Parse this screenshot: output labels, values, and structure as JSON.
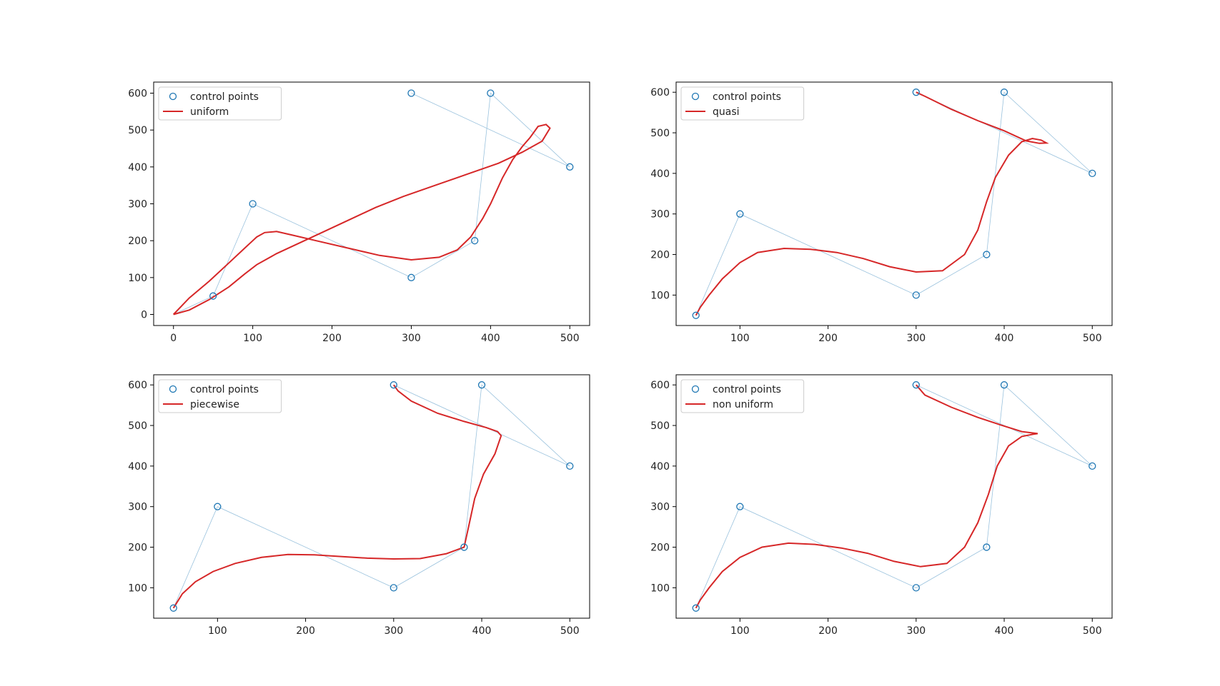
{
  "chart_data": [
    {
      "type": "line",
      "legend_placement": "upper-left",
      "xlim": [
        -25,
        525
      ],
      "ylim": [
        -30,
        630
      ],
      "xticks": [
        0,
        100,
        200,
        300,
        400,
        500
      ],
      "yticks": [
        0,
        100,
        200,
        300,
        400,
        500,
        600
      ],
      "control_points": {
        "name": "control points",
        "x": [
          0,
          50,
          100,
          300,
          380,
          400,
          500,
          300
        ],
        "y": [
          0,
          50,
          300,
          100,
          200,
          600,
          400,
          600
        ]
      },
      "markers": [
        [
          50,
          50
        ],
        [
          100,
          300
        ],
        [
          300,
          100
        ],
        [
          380,
          200
        ],
        [
          400,
          600
        ],
        [
          500,
          400
        ],
        [
          300,
          600
        ]
      ],
      "curve": {
        "name": "uniform",
        "points": [
          [
            0,
            0
          ],
          [
            20,
            12
          ],
          [
            45,
            40
          ],
          [
            70,
            75
          ],
          [
            90,
            110
          ],
          [
            105,
            135
          ],
          [
            130,
            165
          ],
          [
            160,
            195
          ],
          [
            190,
            225
          ],
          [
            220,
            255
          ],
          [
            255,
            290
          ],
          [
            290,
            320
          ],
          [
            330,
            350
          ],
          [
            370,
            380
          ],
          [
            410,
            410
          ],
          [
            440,
            440
          ],
          [
            465,
            470
          ],
          [
            475,
            505
          ],
          [
            470,
            515
          ],
          [
            460,
            510
          ],
          [
            450,
            480
          ],
          [
            440,
            455
          ],
          [
            428,
            420
          ],
          [
            415,
            370
          ],
          [
            400,
            300
          ],
          [
            390,
            260
          ],
          [
            375,
            210
          ],
          [
            358,
            175
          ],
          [
            335,
            155
          ],
          [
            300,
            148
          ],
          [
            260,
            160
          ],
          [
            220,
            180
          ],
          [
            180,
            200
          ],
          [
            150,
            215
          ],
          [
            130,
            225
          ],
          [
            115,
            222
          ],
          [
            105,
            210
          ],
          [
            100,
            200
          ],
          [
            90,
            180
          ],
          [
            70,
            140
          ],
          [
            45,
            90
          ],
          [
            20,
            45
          ],
          [
            0,
            0
          ]
        ]
      }
    },
    {
      "type": "line",
      "legend_placement": "upper-left",
      "xlim": [
        27.5,
        522.5
      ],
      "ylim": [
        25,
        625
      ],
      "xticks": [
        100,
        200,
        300,
        400,
        500
      ],
      "yticks": [
        100,
        200,
        300,
        400,
        500,
        600
      ],
      "control_points": {
        "name": "control points",
        "x": [
          50,
          100,
          300,
          380,
          400,
          500,
          300
        ],
        "y": [
          50,
          300,
          100,
          200,
          600,
          400,
          600
        ]
      },
      "markers": [
        [
          50,
          50
        ],
        [
          100,
          300
        ],
        [
          300,
          100
        ],
        [
          380,
          200
        ],
        [
          400,
          600
        ],
        [
          500,
          400
        ],
        [
          300,
          600
        ]
      ],
      "curve": {
        "name": "quasi",
        "points": [
          [
            50,
            50
          ],
          [
            55,
            70
          ],
          [
            65,
            100
          ],
          [
            80,
            140
          ],
          [
            100,
            180
          ],
          [
            120,
            205
          ],
          [
            150,
            215
          ],
          [
            180,
            213
          ],
          [
            210,
            205
          ],
          [
            240,
            190
          ],
          [
            270,
            170
          ],
          [
            300,
            157
          ],
          [
            330,
            160
          ],
          [
            355,
            200
          ],
          [
            370,
            260
          ],
          [
            380,
            330
          ],
          [
            390,
            390
          ],
          [
            405,
            445
          ],
          [
            420,
            478
          ],
          [
            432,
            486
          ],
          [
            442,
            482
          ],
          [
            448,
            475
          ],
          [
            440,
            474
          ],
          [
            425,
            480
          ],
          [
            400,
            505
          ],
          [
            370,
            530
          ],
          [
            340,
            558
          ],
          [
            310,
            590
          ],
          [
            300,
            600
          ]
        ]
      }
    },
    {
      "type": "line",
      "legend_placement": "upper-left",
      "xlim": [
        27.5,
        522.5
      ],
      "ylim": [
        25,
        625
      ],
      "xticks": [
        100,
        200,
        300,
        400,
        500
      ],
      "yticks": [
        100,
        200,
        300,
        400,
        500,
        600
      ],
      "control_points": {
        "name": "control points",
        "x": [
          50,
          100,
          300,
          380,
          400,
          500,
          300
        ],
        "y": [
          50,
          300,
          100,
          200,
          600,
          400,
          600
        ]
      },
      "markers": [
        [
          50,
          50
        ],
        [
          100,
          300
        ],
        [
          300,
          100
        ],
        [
          380,
          200
        ],
        [
          400,
          600
        ],
        [
          500,
          400
        ],
        [
          300,
          600
        ]
      ],
      "curve": {
        "name": "piecewise",
        "points": [
          [
            50,
            50
          ],
          [
            60,
            85
          ],
          [
            75,
            115
          ],
          [
            95,
            140
          ],
          [
            120,
            160
          ],
          [
            150,
            175
          ],
          [
            180,
            182
          ],
          [
            210,
            181
          ],
          [
            240,
            177
          ],
          [
            270,
            173
          ],
          [
            300,
            171
          ],
          [
            330,
            172
          ],
          [
            360,
            184
          ],
          [
            380,
            200
          ],
          [
            385,
            250
          ],
          [
            392,
            320
          ],
          [
            402,
            380
          ],
          [
            415,
            430
          ],
          [
            422,
            475
          ],
          [
            418,
            485
          ],
          [
            405,
            495
          ],
          [
            380,
            510
          ],
          [
            350,
            530
          ],
          [
            320,
            560
          ],
          [
            305,
            585
          ],
          [
            300,
            600
          ]
        ]
      }
    },
    {
      "type": "line",
      "legend_placement": "upper-left",
      "xlim": [
        27.5,
        522.5
      ],
      "ylim": [
        25,
        625
      ],
      "xticks": [
        100,
        200,
        300,
        400,
        500
      ],
      "yticks": [
        100,
        200,
        300,
        400,
        500,
        600
      ],
      "control_points": {
        "name": "control points",
        "x": [
          50,
          100,
          300,
          380,
          400,
          500,
          300
        ],
        "y": [
          50,
          300,
          100,
          200,
          600,
          400,
          600
        ]
      },
      "markers": [
        [
          50,
          50
        ],
        [
          100,
          300
        ],
        [
          300,
          100
        ],
        [
          380,
          200
        ],
        [
          400,
          600
        ],
        [
          500,
          400
        ],
        [
          300,
          600
        ]
      ],
      "curve": {
        "name": "non uniform",
        "points": [
          [
            50,
            50
          ],
          [
            55,
            70
          ],
          [
            65,
            100
          ],
          [
            80,
            140
          ],
          [
            100,
            175
          ],
          [
            125,
            200
          ],
          [
            155,
            210
          ],
          [
            185,
            207
          ],
          [
            215,
            198
          ],
          [
            245,
            185
          ],
          [
            275,
            165
          ],
          [
            305,
            152
          ],
          [
            335,
            160
          ],
          [
            355,
            200
          ],
          [
            370,
            260
          ],
          [
            382,
            330
          ],
          [
            392,
            400
          ],
          [
            405,
            450
          ],
          [
            420,
            473
          ],
          [
            432,
            478
          ],
          [
            438,
            480
          ],
          [
            420,
            485
          ],
          [
            395,
            502
          ],
          [
            370,
            520
          ],
          [
            340,
            545
          ],
          [
            310,
            575
          ],
          [
            300,
            600
          ]
        ]
      }
    }
  ]
}
